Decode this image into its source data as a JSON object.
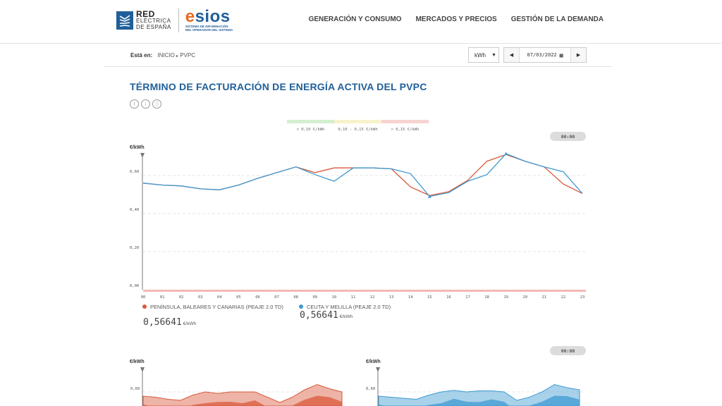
{
  "header": {
    "logo_ree_line1": "RED",
    "logo_ree_line2": "ELÉCTRICA",
    "logo_ree_line3": "DE ESPAÑA",
    "logo_esios": "esios",
    "logo_esios_sub1": "SISTEMA DE INFORMACIÓN",
    "logo_esios_sub2": "DEL OPERADOR DEL SISTEMA",
    "nav": [
      "GENERACIÓN Y CONSUMO",
      "MERCADOS Y PRECIOS",
      "GESTIÓN DE LA DEMANDA"
    ]
  },
  "breadcrumb": {
    "label": "Está en:",
    "home": "INICIO",
    "current": "PVPC"
  },
  "controls": {
    "unit": "kWh",
    "date": "07/03/2022"
  },
  "page_title": "TÉRMINO DE FACTURACIÓN DE ENERGÍA ACTIVA DEL PVPC",
  "price_bands": {
    "labels": [
      "< 0,10 €/kWh",
      "0,10 - 0,15 €/kWh",
      "> 0,15 €/kWh"
    ],
    "colors": [
      "#d4efd0",
      "#f8f2cc",
      "#f6d3d1"
    ]
  },
  "time_badge": "00:00",
  "time_badge_2": "00:00",
  "chart_data": [
    {
      "type": "line",
      "ylabel": "€/kWh",
      "ylim": [
        0,
        0.7
      ],
      "yticks": [
        "0,00",
        "0,20",
        "0,40",
        "0,60"
      ],
      "x": [
        "00",
        "01",
        "02",
        "03",
        "04",
        "05",
        "06",
        "07",
        "08",
        "09",
        "10",
        "11",
        "12",
        "13",
        "14",
        "15",
        "16",
        "17",
        "18",
        "19",
        "20",
        "21",
        "22",
        "23"
      ],
      "series": [
        {
          "name": "PENÍNSULA, BALEARES Y CANARIAS (PEAJE 2.0 TD)",
          "color": "#d9593b",
          "values": [
            0.56,
            0.55,
            0.545,
            0.53,
            0.525,
            0.55,
            0.585,
            0.615,
            0.645,
            0.615,
            0.64,
            0.64,
            0.64,
            0.635,
            0.54,
            0.495,
            0.515,
            0.575,
            0.675,
            0.71,
            0.675,
            0.645,
            0.555,
            0.505
          ]
        },
        {
          "name": "CEUTA Y MELILLA (PEAJE 2.0 TD)",
          "color": "#3d9ad1",
          "values": [
            0.56,
            0.55,
            0.545,
            0.53,
            0.525,
            0.55,
            0.585,
            0.615,
            0.645,
            0.605,
            0.57,
            0.64,
            0.64,
            0.635,
            0.61,
            0.49,
            0.51,
            0.57,
            0.605,
            0.715,
            0.675,
            0.645,
            0.62,
            0.505
          ]
        }
      ],
      "legend_values": [
        "0,56641",
        "0,56641"
      ],
      "legend_unit": "€/kWh"
    },
    {
      "type": "area",
      "ylabel": "€/kWh",
      "yticks": [
        "0,60"
      ],
      "series": [
        {
          "name": "",
          "color": "#d9593b",
          "values": [
            0.56,
            0.55,
            0.53,
            0.52,
            0.57,
            0.6,
            0.585,
            0.6,
            0.6,
            0.6,
            0.55,
            0.5,
            0.55,
            0.62,
            0.67,
            0.63,
            0.6
          ]
        }
      ]
    },
    {
      "type": "area",
      "ylabel": "€/kWh",
      "yticks": [
        "0,60"
      ],
      "series": [
        {
          "name": "",
          "color": "#3d9ad1",
          "values": [
            0.56,
            0.55,
            0.54,
            0.53,
            0.57,
            0.6,
            0.615,
            0.6,
            0.61,
            0.61,
            0.6,
            0.52,
            0.55,
            0.6,
            0.67,
            0.64,
            0.62
          ]
        }
      ]
    }
  ]
}
